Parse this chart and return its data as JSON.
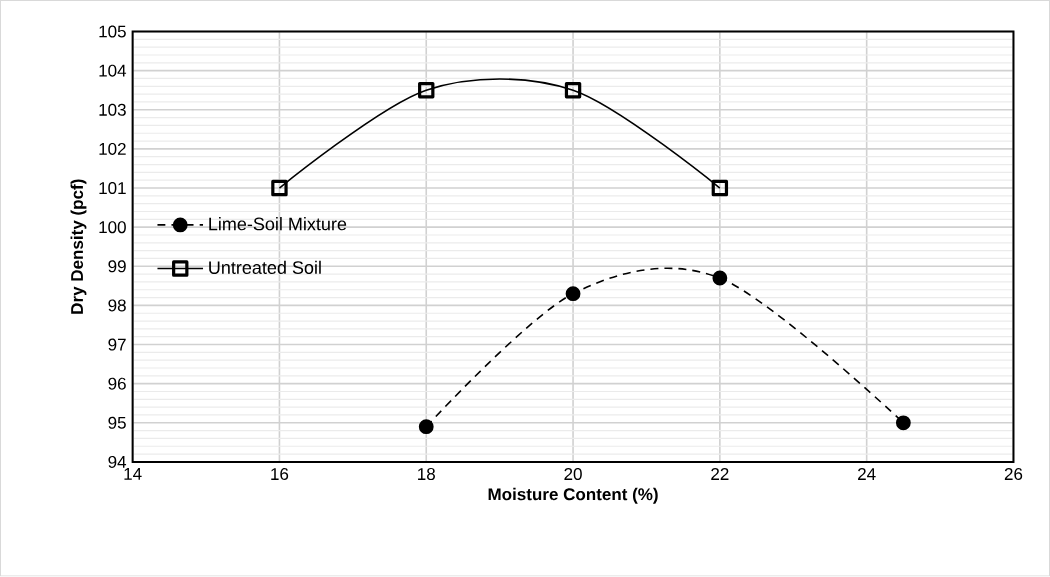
{
  "chart_data": {
    "type": "line",
    "xlabel": "Moisture Content (%)",
    "ylabel": "Dry Density (pcf)",
    "xlim": [
      14,
      26
    ],
    "xticks": [
      14,
      16,
      18,
      20,
      22,
      24,
      26
    ],
    "ylim": [
      94,
      105
    ],
    "yticks": [
      94,
      95,
      96,
      97,
      98,
      99,
      100,
      101,
      102,
      103,
      104,
      105
    ],
    "grid": true,
    "legend": "left",
    "series": [
      {
        "name": "Lime-Soil Mixture",
        "color": "#000000",
        "marker": "circle",
        "line_style": "dashed",
        "x": [
          18,
          20,
          22,
          24.5
        ],
        "values": [
          94.9,
          98.3,
          98.7,
          95.0
        ]
      },
      {
        "name": "Untreated Soil",
        "color": "#000000",
        "marker": "square",
        "line_style": "solid",
        "x": [
          16,
          18,
          20,
          22
        ],
        "values": [
          101,
          103.5,
          103.5,
          101
        ]
      }
    ]
  }
}
